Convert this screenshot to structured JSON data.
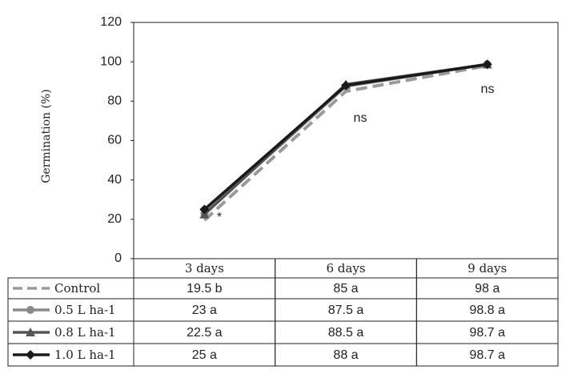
{
  "chart_data": {
    "type": "line",
    "y_label": "Germination (%)",
    "categories": [
      "3 days",
      "6 days",
      "9 days"
    ],
    "ylim": [
      0,
      120
    ],
    "yticks": [
      0,
      20,
      40,
      60,
      80,
      100,
      120
    ],
    "series": [
      {
        "name": "Control",
        "color": "#9a9a9a",
        "marker": "none",
        "dashed": true,
        "values": [
          19.5,
          85,
          98
        ],
        "value_labels": [
          "19.5 b",
          "85 a",
          "98 a"
        ]
      },
      {
        "name": "0.5 L ha-1",
        "color": "#8a8a8a",
        "marker": "circle",
        "dashed": false,
        "values": [
          23,
          87.5,
          98.8
        ],
        "value_labels": [
          "23 a",
          "87.5 a",
          "98.8 a"
        ]
      },
      {
        "name": "0.8 L ha-1",
        "color": "#555555",
        "marker": "triangle",
        "dashed": false,
        "values": [
          22.5,
          88.5,
          98.7
        ],
        "value_labels": [
          "22.5 a",
          "88.5 a",
          "98.7 a"
        ]
      },
      {
        "name": "1.0 L ha-1",
        "color": "#1a1a1a",
        "marker": "diamond",
        "dashed": false,
        "values": [
          25,
          88,
          98.7
        ],
        "value_labels": [
          "25 a",
          "88 a",
          "98.7 a"
        ]
      }
    ],
    "annotations": [
      "*",
      "ns",
      "ns"
    ]
  }
}
